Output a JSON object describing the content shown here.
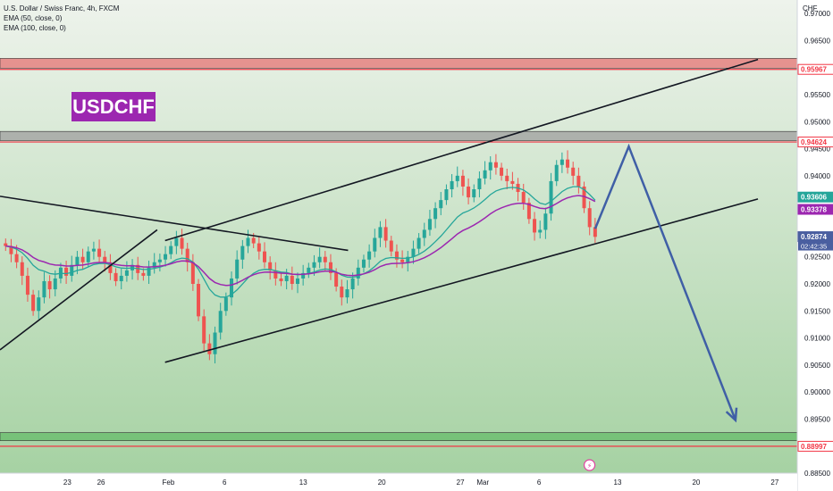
{
  "legend": {
    "title": "U.S. Dollar / Swiss Franc, 4h, FXCM",
    "ema50": "EMA (50, close, 0)",
    "ema100": "EMA (100, close, 0)"
  },
  "symbol_badge": "USDCHF",
  "currency_label": "CHF",
  "colors": {
    "up": "#26a69a",
    "down": "#ef5350",
    "ema50": "#26a69a",
    "ema100": "#9c27b0",
    "zone_red": "#e57373",
    "zone_gray": "#9e9e9e",
    "zone_green": "#66bb6a",
    "level_line": "#f23645",
    "projection": "#3f5fa6",
    "badge": "#9c27b0"
  },
  "chart_data": {
    "type": "candlestick",
    "symbol": "USDCHF",
    "timeframe": "4h",
    "source": "FXCM",
    "y_range": [
      0.885,
      0.9725
    ],
    "y_ticks": [
      "0.97000",
      "0.96500",
      "0.95500",
      "0.95000",
      "0.94500",
      "0.94000",
      "0.92500",
      "0.92000",
      "0.91500",
      "0.91000",
      "0.90500",
      "0.90000",
      "0.89500",
      "0.88500"
    ],
    "x_ticks": [
      {
        "label": "23",
        "day": 0
      },
      {
        "label": "26",
        "day": 3
      },
      {
        "label": "Feb",
        "day": 9
      },
      {
        "label": "6",
        "day": 14
      },
      {
        "label": "13",
        "day": 21
      },
      {
        "label": "20",
        "day": 28
      },
      {
        "label": "27",
        "day": 35
      },
      {
        "label": "Mar",
        "day": 37
      },
      {
        "label": "6",
        "day": 42
      },
      {
        "label": "13",
        "day": 49
      },
      {
        "label": "20",
        "day": 56
      },
      {
        "label": "27",
        "day": 63
      }
    ],
    "x_range_days": [
      -6,
      65
    ],
    "price_labels": [
      {
        "value": 0.95967,
        "text": "0.95967",
        "kind": "level"
      },
      {
        "value": 0.94624,
        "text": "0.94624",
        "kind": "level"
      },
      {
        "value": 0.93606,
        "text": "0.93606",
        "kind": "ema50"
      },
      {
        "value": 0.93378,
        "text": "0.93378",
        "kind": "ema100"
      },
      {
        "value": 0.92874,
        "text": "0.92874",
        "kind": "last"
      },
      {
        "value": 0.88997,
        "text": "0.88997",
        "kind": "level"
      }
    ],
    "countdown": "02:42:35",
    "zones": [
      {
        "name": "resistance-high",
        "from": 0.9599,
        "to": 0.9617,
        "color": "zone_red"
      },
      {
        "name": "resistance-mid",
        "from": 0.9465,
        "to": 0.9482,
        "color": "zone_gray"
      },
      {
        "name": "support-low",
        "from": 0.891,
        "to": 0.8925,
        "color": "zone_green"
      }
    ],
    "levels": [
      0.95967,
      0.94624,
      0.88997
    ],
    "trendlines": [
      {
        "name": "channel-upper",
        "from": [
          8.7,
          0.928
        ],
        "to": [
          61.5,
          0.9615
        ]
      },
      {
        "name": "channel-lower",
        "from": [
          8.7,
          0.9055
        ],
        "to": [
          61.5,
          0.9357
        ]
      },
      {
        "name": "descending-line",
        "from": [
          -6,
          0.9362
        ],
        "to": [
          25,
          0.9262
        ]
      },
      {
        "name": "rising-line",
        "from": [
          -6,
          0.9078
        ],
        "to": [
          8,
          0.93
        ]
      },
      {
        "name": "projection",
        "points": [
          [
            47,
            0.9302
          ],
          [
            50,
            0.9454
          ],
          [
            59.5,
            0.8948
          ]
        ]
      }
    ],
    "candles_close": [
      0.927,
      0.9255,
      0.924,
      0.9215,
      0.918,
      0.915,
      0.9175,
      0.9205,
      0.919,
      0.921,
      0.923,
      0.9215,
      0.9235,
      0.925,
      0.924,
      0.926,
      0.9265,
      0.925,
      0.924,
      0.922,
      0.9205,
      0.9215,
      0.9225,
      0.9235,
      0.922,
      0.9215,
      0.923,
      0.924,
      0.9245,
      0.9255,
      0.927,
      0.9285,
      0.9265,
      0.924,
      0.92,
      0.914,
      0.909,
      0.907,
      0.911,
      0.915,
      0.9175,
      0.921,
      0.9245,
      0.927,
      0.9285,
      0.9275,
      0.926,
      0.924,
      0.9225,
      0.921,
      0.9205,
      0.9215,
      0.92,
      0.921,
      0.922,
      0.923,
      0.924,
      0.925,
      0.924,
      0.922,
      0.9195,
      0.9175,
      0.919,
      0.921,
      0.923,
      0.9245,
      0.926,
      0.9285,
      0.9305,
      0.928,
      0.926,
      0.9245,
      0.924,
      0.925,
      0.9265,
      0.9285,
      0.93,
      0.932,
      0.934,
      0.9355,
      0.9375,
      0.939,
      0.94,
      0.938,
      0.936,
      0.9375,
      0.9395,
      0.941,
      0.9425,
      0.9415,
      0.94,
      0.939,
      0.9385,
      0.937,
      0.935,
      0.932,
      0.9295,
      0.93,
      0.933,
      0.939,
      0.942,
      0.943,
      0.9415,
      0.94,
      0.938,
      0.934,
      0.9305,
      0.9287
    ]
  }
}
